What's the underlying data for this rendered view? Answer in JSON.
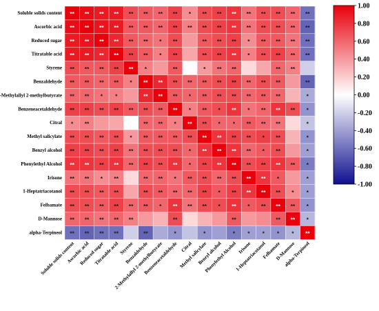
{
  "chart_data": {
    "type": "heatmap",
    "title": "",
    "xlabel": "",
    "ylabel": "",
    "variables": [
      "Soluble solids content",
      "Ascorbic acid",
      "Reduced sugar",
      "Titratable acid",
      "Styrene",
      "Benzaldehyde",
      "2-Methylallyl 2-methylbutyrate",
      "Benzeneacetaldehyde",
      "Citral",
      "Methyl salicylate",
      "Benzyl alcohol",
      "Phenylethyl Alcohol",
      "Irisone",
      "1-Heptatriacotanol",
      "Felbamate",
      "D-Mannose",
      "alpha-Terpineol"
    ],
    "matrix": [
      [
        1.0,
        0.95,
        0.9,
        0.9,
        0.7,
        0.65,
        0.6,
        0.75,
        0.45,
        0.7,
        0.75,
        0.8,
        0.55,
        0.7,
        0.7,
        0.6,
        -0.6
      ],
      [
        0.95,
        1.0,
        0.92,
        0.9,
        0.65,
        0.65,
        0.6,
        0.75,
        0.5,
        0.7,
        0.75,
        0.8,
        0.55,
        0.7,
        0.7,
        0.6,
        -0.65
      ],
      [
        0.9,
        0.92,
        1.0,
        0.85,
        0.65,
        0.6,
        0.55,
        0.7,
        0.4,
        0.65,
        0.7,
        0.75,
        0.45,
        0.65,
        0.65,
        0.55,
        -0.6
      ],
      [
        0.9,
        0.9,
        0.85,
        1.0,
        0.75,
        0.65,
        0.5,
        0.75,
        0.35,
        0.7,
        0.75,
        0.8,
        0.5,
        0.7,
        0.75,
        0.6,
        -0.6
      ],
      [
        0.7,
        0.65,
        0.65,
        0.75,
        1.0,
        0.5,
        0.4,
        0.65,
        0.0,
        0.4,
        0.55,
        0.6,
        0.15,
        0.35,
        0.6,
        0.5,
        -0.2
      ],
      [
        0.65,
        0.65,
        0.6,
        0.65,
        0.5,
        1.0,
        0.85,
        0.7,
        0.6,
        0.65,
        0.7,
        0.75,
        0.6,
        0.7,
        0.65,
        0.4,
        -0.65
      ],
      [
        0.6,
        0.6,
        0.55,
        0.5,
        0.4,
        0.85,
        1.0,
        0.65,
        0.6,
        0.65,
        0.7,
        0.7,
        0.6,
        0.65,
        0.6,
        0.3,
        -0.35
      ],
      [
        0.75,
        0.75,
        0.7,
        0.75,
        0.65,
        0.7,
        0.65,
        1.0,
        0.5,
        0.65,
        0.7,
        0.8,
        0.55,
        0.6,
        0.8,
        0.7,
        -0.45
      ],
      [
        0.45,
        0.5,
        0.4,
        0.35,
        0.0,
        0.6,
        0.6,
        0.5,
        1.0,
        0.7,
        0.6,
        0.6,
        0.65,
        0.6,
        0.55,
        0.15,
        -0.25
      ],
      [
        0.7,
        0.7,
        0.65,
        0.7,
        0.4,
        0.65,
        0.65,
        0.65,
        0.7,
        1.0,
        0.8,
        0.75,
        0.7,
        0.75,
        0.7,
        0.3,
        -0.45
      ],
      [
        0.75,
        0.75,
        0.7,
        0.75,
        0.55,
        0.7,
        0.7,
        0.7,
        0.6,
        0.8,
        1.0,
        0.8,
        0.6,
        0.65,
        0.7,
        0.4,
        -0.4
      ],
      [
        0.8,
        0.8,
        0.75,
        0.8,
        0.6,
        0.75,
        0.7,
        0.8,
        0.6,
        0.75,
        0.8,
        1.0,
        0.7,
        0.75,
        0.8,
        0.65,
        -0.55
      ],
      [
        0.55,
        0.55,
        0.45,
        0.5,
        0.15,
        0.6,
        0.6,
        0.55,
        0.65,
        0.7,
        0.6,
        0.7,
        1.0,
        0.8,
        0.65,
        0.4,
        -0.4
      ],
      [
        0.7,
        0.7,
        0.65,
        0.7,
        0.35,
        0.7,
        0.65,
        0.6,
        0.6,
        0.75,
        0.65,
        0.75,
        0.8,
        1.0,
        0.7,
        0.45,
        -0.4
      ],
      [
        0.7,
        0.7,
        0.65,
        0.75,
        0.6,
        0.65,
        0.6,
        0.8,
        0.55,
        0.7,
        0.7,
        0.8,
        0.65,
        0.7,
        1.0,
        0.65,
        -0.45
      ],
      [
        0.6,
        0.6,
        0.55,
        0.6,
        0.5,
        0.4,
        0.3,
        0.7,
        0.15,
        0.3,
        0.4,
        0.65,
        0.4,
        0.45,
        0.65,
        1.0,
        -0.3
      ],
      [
        -0.6,
        -0.65,
        -0.6,
        -0.6,
        -0.2,
        -0.65,
        -0.35,
        -0.45,
        -0.25,
        -0.45,
        -0.4,
        -0.55,
        -0.4,
        -0.4,
        -0.45,
        -0.3,
        1.0
      ]
    ],
    "significance": [
      [
        "**",
        "**",
        "**",
        "**",
        "**",
        "**",
        "**",
        "**",
        "*",
        "**",
        "**",
        "**",
        "**",
        "**",
        "**",
        "**",
        "**"
      ],
      [
        "**",
        "**",
        "**",
        "**",
        "**",
        "**",
        "**",
        "**",
        "**",
        "**",
        "**",
        "**",
        "**",
        "**",
        "**",
        "**",
        "**"
      ],
      [
        "**",
        "**",
        "**",
        "**",
        "**",
        "**",
        "*",
        "**",
        "",
        "**",
        "**",
        "**",
        "*",
        "**",
        "**",
        "**",
        "**"
      ],
      [
        "**",
        "**",
        "**",
        "**",
        "**",
        "**",
        "*",
        "**",
        "",
        "**",
        "**",
        "**",
        "*",
        "**",
        "**",
        "**",
        "**"
      ],
      [
        "**",
        "**",
        "**",
        "**",
        "**",
        "*",
        "",
        "**",
        "",
        "*",
        "**",
        "**",
        "",
        "",
        "**",
        "**",
        ""
      ],
      [
        "**",
        "**",
        "**",
        "**",
        "*",
        "**",
        "**",
        "**",
        "**",
        "**",
        "**",
        "**",
        "**",
        "**",
        "**",
        "",
        "**"
      ],
      [
        "**",
        "**",
        "*",
        "*",
        "",
        "**",
        "**",
        "**",
        "*",
        "**",
        "**",
        "**",
        "**",
        "**",
        "**",
        "",
        "*"
      ],
      [
        "**",
        "**",
        "**",
        "**",
        "**",
        "**",
        "**",
        "**",
        "*",
        "**",
        "*",
        "**",
        "*",
        "**",
        "**",
        "**",
        "*"
      ],
      [
        "*",
        "**",
        "",
        "",
        "",
        "**",
        "**",
        "*",
        "**",
        "**",
        "*",
        "*",
        "**",
        "**",
        "**",
        "",
        "*"
      ],
      [
        "**",
        "**",
        "**",
        "**",
        "*",
        "**",
        "**",
        "**",
        "**",
        "**",
        "**",
        "**",
        "**",
        "*",
        "**",
        "",
        "*"
      ],
      [
        "**",
        "**",
        "**",
        "**",
        "**",
        "**",
        "**",
        "**",
        "*",
        "**",
        "**",
        "**",
        "**",
        "*",
        "**",
        "",
        "*"
      ],
      [
        "**",
        "**",
        "**",
        "**",
        "**",
        "**",
        "**",
        "**",
        "*",
        "**",
        "**",
        "**",
        "**",
        "**",
        "**",
        "**",
        "*"
      ],
      [
        "**",
        "**",
        "*",
        "**",
        "",
        "**",
        "**",
        "*",
        "**",
        "**",
        "**",
        "**",
        "**",
        "**",
        "*",
        "",
        "*"
      ],
      [
        "**",
        "**",
        "**",
        "**",
        "",
        "**",
        "**",
        "**",
        "**",
        "**",
        "*",
        "**",
        "**",
        "**",
        "**",
        "*",
        "*"
      ],
      [
        "**",
        "**",
        "**",
        "**",
        "**",
        "**",
        "*",
        "**",
        "**",
        "**",
        "*",
        "**",
        "*",
        "**",
        "**",
        "**",
        "*"
      ],
      [
        "**",
        "**",
        "**",
        "**",
        "**",
        "",
        "",
        "**",
        "",
        "",
        "",
        "**",
        "",
        "",
        "**",
        "**",
        "*"
      ],
      [
        "**",
        "**",
        "**",
        "**",
        "",
        "**",
        "",
        "*",
        "",
        "*",
        "",
        "*",
        "*",
        "*",
        "*",
        "*",
        "**"
      ]
    ],
    "colorbar": {
      "ticks": [
        "1.00",
        "0.80",
        "0.60",
        "0.40",
        "0.20",
        "0.00",
        "-0.20",
        "-0.40",
        "-0.60",
        "-0.80",
        "-1.00"
      ],
      "min": -1.0,
      "max": 1.0,
      "color_high": "#e8000b",
      "color_mid": "#ffffff",
      "color_low": "#101090"
    }
  }
}
